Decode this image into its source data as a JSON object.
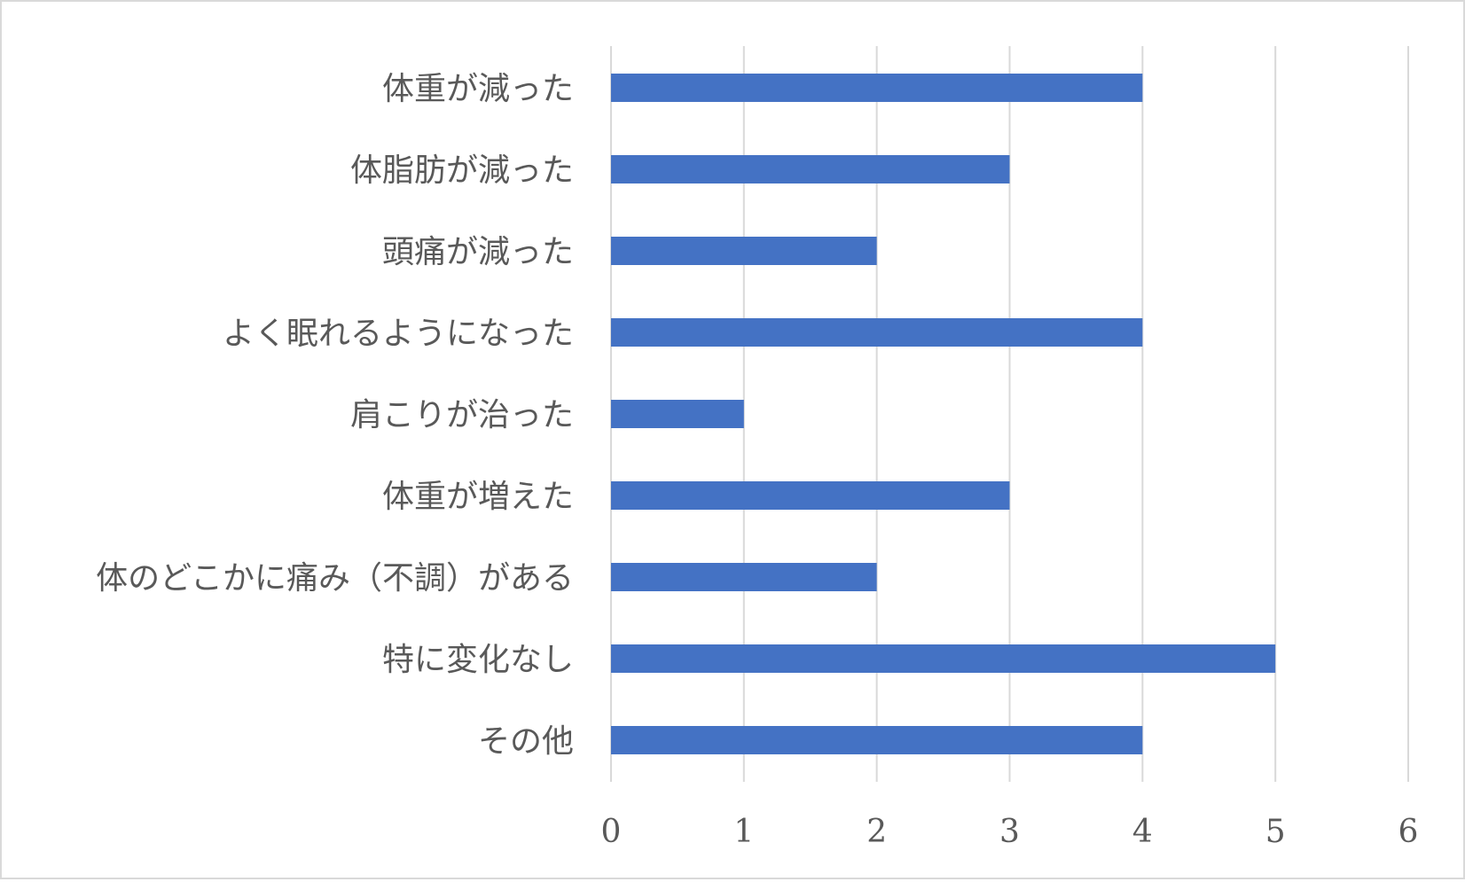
{
  "chart_data": {
    "type": "bar",
    "orientation": "horizontal",
    "categories": [
      "体重が減った",
      "体脂肪が減った",
      "頭痛が減った",
      "よく眠れるようになった",
      "肩こりが治った",
      "体重が増えた",
      "体のどこかに痛み（不調）がある",
      "特に変化なし",
      "その他"
    ],
    "values": [
      4,
      3,
      2,
      4,
      1,
      3,
      2,
      5,
      4
    ],
    "xlim": [
      0,
      6
    ],
    "xticks": [
      "0",
      "1",
      "2",
      "3",
      "4",
      "5",
      "6"
    ],
    "title": "",
    "xlabel": "",
    "ylabel": "",
    "grid": "vertical",
    "legend": "none",
    "bar_color": "#4472c4",
    "grid_color": "#d9d9d9",
    "text_color": "#595959"
  }
}
